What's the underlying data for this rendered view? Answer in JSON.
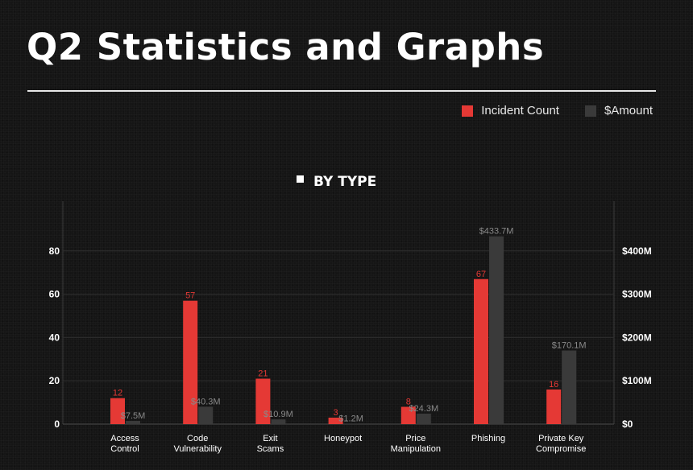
{
  "page": {
    "title": "Q2 Statistics and Graphs"
  },
  "legend": {
    "items": [
      {
        "label": "Incident Count",
        "color": "#e53935"
      },
      {
        "label": "$Amount",
        "color": "#3a3a3a"
      }
    ]
  },
  "chart_data": {
    "type": "bar",
    "title": "BY TYPE",
    "categories": [
      [
        "Access",
        "Control"
      ],
      [
        "Code",
        "Vulnerability"
      ],
      [
        "Exit",
        "Scams"
      ],
      [
        "Honeypot"
      ],
      [
        "Price",
        "Manipulation"
      ],
      [
        "Phishing"
      ],
      [
        "Private Key",
        "Compromise"
      ]
    ],
    "series": [
      {
        "name": "Incident Count",
        "axis": "left",
        "color": "#e53935",
        "label_color": "#e53935",
        "values": [
          12,
          57,
          21,
          3,
          8,
          67,
          16
        ],
        "labels": [
          "12",
          "57",
          "21",
          "3",
          "8",
          "67",
          "16"
        ]
      },
      {
        "name": "$Amount",
        "axis": "right",
        "unit": "M USD",
        "color": "#3a3a3a",
        "label_color": "#8a8a8a",
        "values": [
          7.5,
          40.3,
          10.9,
          1.2,
          24.3,
          433.7,
          170.1
        ],
        "labels": [
          "$7.5M",
          "$40.3M",
          "$10.9M",
          "$1.2M",
          "$24.3M",
          "$433.7M",
          "$170.1M"
        ]
      }
    ],
    "y_left": {
      "range": [
        0,
        100
      ],
      "ticks": [
        0,
        20,
        40,
        60,
        80
      ],
      "tick_labels": [
        "0",
        "20",
        "40",
        "60",
        "80"
      ]
    },
    "y_right": {
      "range": [
        0,
        500
      ],
      "ticks": [
        0,
        100,
        200,
        300,
        400
      ],
      "tick_labels": [
        "$0",
        "$100M",
        "$200M",
        "$300M",
        "$400M"
      ]
    },
    "grid": true,
    "legend_position": "top-right"
  }
}
